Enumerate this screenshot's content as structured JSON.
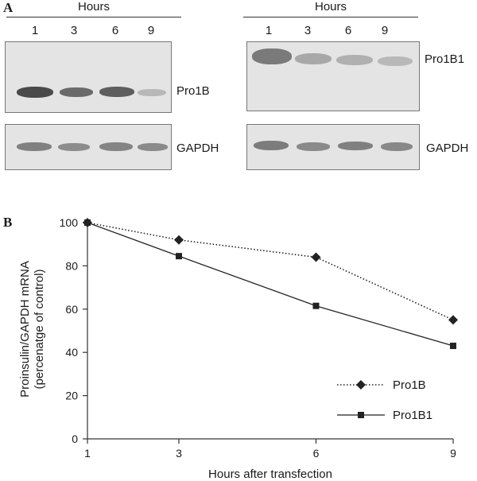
{
  "panel_a": {
    "letter": "A",
    "left": {
      "hours_label": "Hours",
      "lanes": [
        "1",
        "3",
        "6",
        "9"
      ],
      "blot_label": "Pro1B",
      "gapdh_label": "GAPDH"
    },
    "right": {
      "hours_label": "Hours",
      "lanes": [
        "1",
        "3",
        "6",
        "9"
      ],
      "blot_label": "Pro1B1",
      "gapdh_label": "GAPDH"
    }
  },
  "panel_b": {
    "letter": "B"
  },
  "chart_data": {
    "type": "line",
    "x": [
      1,
      3,
      6,
      9
    ],
    "series": [
      {
        "name": "Pro1B",
        "values": [
          100,
          92,
          84,
          55
        ],
        "marker": "diamond",
        "line": "dotted"
      },
      {
        "name": "Pro1B1",
        "values": [
          100,
          84.5,
          61.5,
          43
        ],
        "marker": "square",
        "line": "solid"
      }
    ],
    "xlabel": "Hours after transfection",
    "ylabel_line1": "Proinsulin/GAPDH mRNA",
    "ylabel_line2": "(percenatge of control)",
    "x_ticks": [
      1,
      3,
      6,
      9
    ],
    "y_ticks": [
      0,
      20,
      40,
      60,
      80,
      100
    ],
    "ylim": [
      0,
      100
    ],
    "grid": false,
    "legend_position": "bottom-right"
  },
  "colors": {
    "line": "#222222",
    "blot_bg": "#e4e4e4",
    "band": "#555555"
  }
}
